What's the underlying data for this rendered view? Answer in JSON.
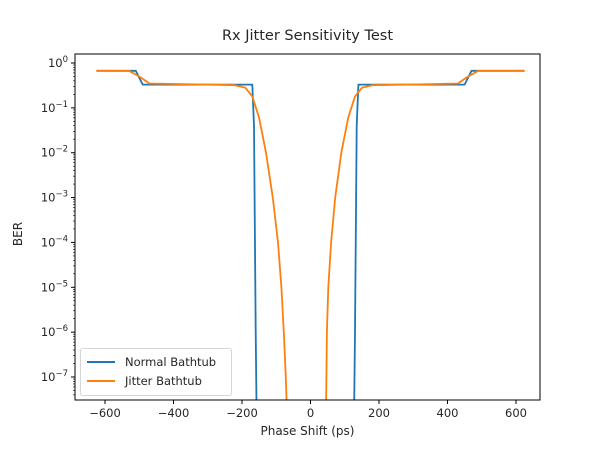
{
  "chart_data": {
    "type": "line",
    "title": "Rx Jitter Sensitivity Test",
    "xlabel": "Phase Shift (ps)",
    "ylabel": "BER",
    "yscale": "log",
    "xlim": [
      -685,
      690
    ],
    "ylim": [
      3e-08,
      1.25
    ],
    "xticks": [
      -600,
      -400,
      -200,
      0,
      200,
      400,
      600
    ],
    "xtick_labels": [
      "−600",
      "−400",
      "−200",
      "0",
      "200",
      "400",
      "600"
    ],
    "yticks_exp": [
      0,
      -1,
      -2,
      -3,
      -4,
      -5,
      -6,
      -7
    ],
    "grid": false,
    "legend_position": "lower left",
    "series": [
      {
        "name": "Normal Bathtub",
        "color": "#1f77b4",
        "x": [
          -625,
          -510,
          -490,
          -180,
          -170,
          -165,
          -160,
          -157,
          -155,
          125,
          127,
          130,
          135,
          140,
          450,
          470,
          625
        ],
        "y": [
          0.67,
          0.67,
          0.33,
          0.33,
          0.33,
          0.04,
          1e-06,
          1e-08,
          1e-09,
          1e-09,
          1e-08,
          1e-06,
          0.04,
          0.33,
          0.33,
          0.67,
          0.67
        ]
      },
      {
        "name": "Jitter Bathtub",
        "color": "#ff7f0e",
        "x": [
          -625,
          -530,
          -500,
          -470,
          -300,
          -220,
          -190,
          -170,
          -150,
          -130,
          -110,
          -95,
          -85,
          -78,
          -72,
          -68,
          45,
          48,
          52,
          60,
          72,
          90,
          110,
          130,
          150,
          180,
          280,
          430,
          460,
          490,
          525,
          625
        ],
        "y": [
          0.67,
          0.67,
          0.5,
          0.35,
          0.33,
          0.32,
          0.28,
          0.18,
          0.06,
          0.01,
          0.001,
          0.0001,
          1e-05,
          1e-06,
          1e-07,
          1e-08,
          1e-08,
          1e-06,
          1e-05,
          0.0001,
          0.001,
          0.01,
          0.06,
          0.18,
          0.28,
          0.32,
          0.33,
          0.35,
          0.5,
          0.67,
          0.67,
          0.67
        ]
      }
    ]
  },
  "legend": {
    "items": [
      {
        "label": "Normal Bathtub",
        "color": "#1f77b4"
      },
      {
        "label": "Jitter Bathtub",
        "color": "#ff7f0e"
      }
    ]
  }
}
